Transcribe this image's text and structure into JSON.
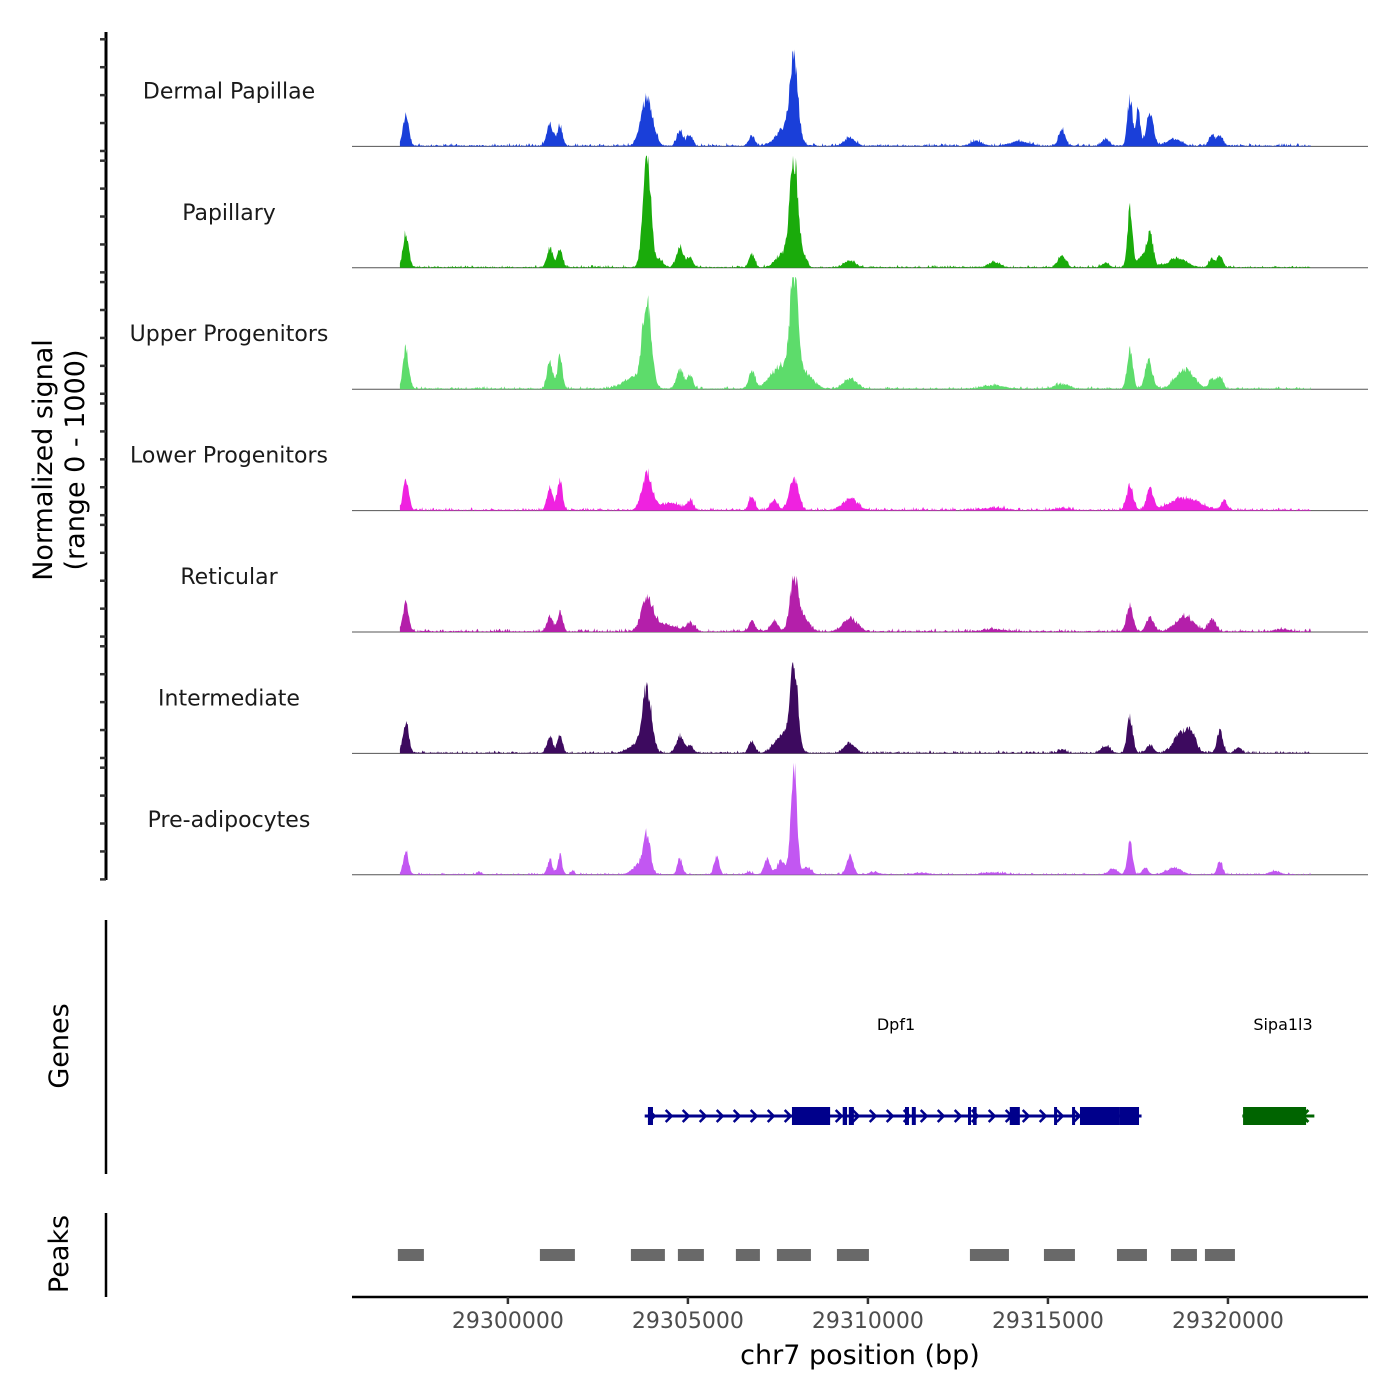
{
  "chart_data": {
    "type": "area",
    "title": "",
    "xlabel": "chr7 position (bp)",
    "ylabel": "Normalized signal\n(range 0 - 1000)",
    "ylabel_lines": [
      "Normalized signal",
      "(range 0 - 1000)"
    ],
    "xlim": [
      29295670,
      29323890
    ],
    "ylim": [
      0,
      1000
    ],
    "x_ticks": [
      29300000,
      29305000,
      29310000,
      29315000,
      29320000
    ],
    "x_tick_labels": [
      "29300000",
      "29305000",
      "29310000",
      "29315000",
      "29320000"
    ],
    "grid": false,
    "signal_extent": [
      29297000,
      29322300
    ],
    "series": [
      {
        "name": "Dermal Papillae",
        "color": "#1a3fd9",
        "peaks": [
          [
            29297167,
            270,
            80
          ],
          [
            29301167,
            180,
            90
          ],
          [
            29301444,
            180,
            70
          ],
          [
            29303861,
            440,
            160
          ],
          [
            29304778,
            130,
            90
          ],
          [
            29305056,
            90,
            80
          ],
          [
            29306778,
            90,
            80
          ],
          [
            29307944,
            710,
            110
          ],
          [
            29307700,
            150,
            250
          ],
          [
            29309500,
            70,
            150
          ],
          [
            29313000,
            40,
            150
          ],
          [
            29314200,
            40,
            250
          ],
          [
            29315389,
            140,
            90
          ],
          [
            29316600,
            60,
            100
          ],
          [
            29317278,
            420,
            70
          ],
          [
            29317500,
            330,
            60
          ],
          [
            29317833,
            270,
            100
          ],
          [
            29318500,
            60,
            200
          ],
          [
            29319556,
            90,
            80
          ],
          [
            29319778,
            90,
            80
          ]
        ],
        "noise": 12
      },
      {
        "name": "Papillary",
        "color": "#1aab0b",
        "peaks": [
          [
            29297167,
            300,
            80
          ],
          [
            29301167,
            180,
            80
          ],
          [
            29301444,
            170,
            70
          ],
          [
            29303861,
            990,
            110
          ],
          [
            29304222,
            60,
            100
          ],
          [
            29304778,
            170,
            100
          ],
          [
            29305056,
            90,
            80
          ],
          [
            29306778,
            120,
            80
          ],
          [
            29307944,
            940,
            110
          ],
          [
            29307650,
            120,
            200
          ],
          [
            29308200,
            90,
            100
          ],
          [
            29309500,
            60,
            150
          ],
          [
            29313500,
            50,
            150
          ],
          [
            29315389,
            110,
            110
          ],
          [
            29316600,
            40,
            100
          ],
          [
            29317278,
            520,
            70
          ],
          [
            29317833,
            300,
            90
          ],
          [
            29317600,
            100,
            100
          ],
          [
            29318600,
            80,
            250
          ],
          [
            29319556,
            80,
            80
          ],
          [
            29319778,
            100,
            80
          ]
        ],
        "noise": 10
      },
      {
        "name": "Upper Progenitors",
        "color": "#5ddc6b",
        "peaks": [
          [
            29297167,
            350,
            80
          ],
          [
            29301167,
            240,
            80
          ],
          [
            29301444,
            280,
            70
          ],
          [
            29303861,
            750,
            120
          ],
          [
            29303500,
            100,
            300
          ],
          [
            29304778,
            160,
            100
          ],
          [
            29305056,
            120,
            80
          ],
          [
            29306778,
            160,
            80
          ],
          [
            29307944,
            920,
            110
          ],
          [
            29307600,
            200,
            300
          ],
          [
            29308300,
            120,
            200
          ],
          [
            29309500,
            90,
            180
          ],
          [
            29313500,
            30,
            300
          ],
          [
            29315389,
            40,
            200
          ],
          [
            29317278,
            350,
            80
          ],
          [
            29317800,
            250,
            100
          ],
          [
            29318800,
            170,
            250
          ],
          [
            29319556,
            90,
            80
          ],
          [
            29319778,
            110,
            80
          ]
        ],
        "noise": 10
      },
      {
        "name": "Lower Progenitors",
        "color": "#ef22e0",
        "peaks": [
          [
            29297167,
            260,
            80
          ],
          [
            29301167,
            200,
            80
          ],
          [
            29301444,
            270,
            70
          ],
          [
            29303861,
            320,
            140
          ],
          [
            29304500,
            60,
            300
          ],
          [
            29305056,
            80,
            80
          ],
          [
            29306778,
            130,
            80
          ],
          [
            29307400,
            90,
            100
          ],
          [
            29307944,
            290,
            120
          ],
          [
            29309500,
            100,
            200
          ],
          [
            29313500,
            20,
            300
          ],
          [
            29315389,
            20,
            200
          ],
          [
            29317278,
            220,
            90
          ],
          [
            29317833,
            200,
            90
          ],
          [
            29318800,
            110,
            400
          ],
          [
            29319900,
            90,
            80
          ]
        ],
        "noise": 12
      },
      {
        "name": "Reticular",
        "color": "#b41faa",
        "peaks": [
          [
            29297167,
            240,
            80
          ],
          [
            29301167,
            140,
            80
          ],
          [
            29301444,
            180,
            70
          ],
          [
            29303861,
            290,
            150
          ],
          [
            29304300,
            70,
            300
          ],
          [
            29305056,
            70,
            120
          ],
          [
            29306778,
            100,
            80
          ],
          [
            29307400,
            100,
            100
          ],
          [
            29307944,
            470,
            110
          ],
          [
            29308200,
            130,
            150
          ],
          [
            29309500,
            120,
            200
          ],
          [
            29313500,
            20,
            300
          ],
          [
            29317278,
            230,
            90
          ],
          [
            29317833,
            130,
            100
          ],
          [
            29318800,
            130,
            250
          ],
          [
            29319556,
            110,
            100
          ],
          [
            29321500,
            20,
            200
          ]
        ],
        "noise": 12
      },
      {
        "name": "Intermediate",
        "color": "#3d0a5f",
        "peaks": [
          [
            29297167,
            280,
            80
          ],
          [
            29301167,
            140,
            80
          ],
          [
            29301444,
            160,
            70
          ],
          [
            29303861,
            560,
            130
          ],
          [
            29303500,
            60,
            200
          ],
          [
            29304778,
            150,
            100
          ],
          [
            29305056,
            70,
            80
          ],
          [
            29306778,
            110,
            80
          ],
          [
            29307944,
            770,
            110
          ],
          [
            29307600,
            160,
            200
          ],
          [
            29309500,
            90,
            150
          ],
          [
            29315389,
            30,
            100
          ],
          [
            29316600,
            60,
            120
          ],
          [
            29317278,
            310,
            80
          ],
          [
            29317833,
            70,
            100
          ],
          [
            29318700,
            180,
            200
          ],
          [
            29319000,
            140,
            120
          ],
          [
            29319778,
            200,
            80
          ],
          [
            29320300,
            50,
            80
          ]
        ],
        "noise": 10
      },
      {
        "name": "Pre-adipocytes",
        "color": "#c257f2",
        "peaks": [
          [
            29297167,
            210,
            70
          ],
          [
            29299200,
            25,
            60
          ],
          [
            29301167,
            130,
            70
          ],
          [
            29301444,
            170,
            60
          ],
          [
            29301800,
            40,
            50
          ],
          [
            29303700,
            100,
            200
          ],
          [
            29303861,
            300,
            90
          ],
          [
            29304778,
            140,
            70
          ],
          [
            29305800,
            160,
            70
          ],
          [
            29306700,
            20,
            100
          ],
          [
            29307200,
            140,
            80
          ],
          [
            29307944,
            1000,
            80
          ],
          [
            29307600,
            120,
            120
          ],
          [
            29308300,
            60,
            120
          ],
          [
            29309500,
            170,
            90
          ],
          [
            29310200,
            20,
            150
          ],
          [
            29311500,
            15,
            200
          ],
          [
            29313500,
            15,
            300
          ],
          [
            29316800,
            50,
            120
          ],
          [
            29317278,
            300,
            70
          ],
          [
            29317700,
            60,
            80
          ],
          [
            29318500,
            60,
            200
          ],
          [
            29319778,
            120,
            70
          ],
          [
            29321300,
            30,
            150
          ]
        ],
        "noise": 8
      }
    ],
    "tracks_genes": {
      "label": "Genes",
      "genes": [
        {
          "name": "Dpf1",
          "strand": "+",
          "color": "#00008b",
          "start": 29303800,
          "end": 29317600,
          "exons": [
            [
              29303890,
              29304030
            ],
            [
              29307890,
              29308950
            ],
            [
              29309300,
              29309420
            ],
            [
              29309470,
              29309610
            ],
            [
              29311030,
              29311140
            ],
            [
              29311220,
              29311330
            ],
            [
              29312780,
              29312860
            ],
            [
              29312920,
              29313020
            ],
            [
              29313940,
              29314220
            ],
            [
              29315170,
              29315250
            ],
            [
              29315670,
              29315750
            ],
            [
              29315890,
              29317000
            ],
            [
              29317000,
              29317530
            ]
          ]
        },
        {
          "name": "Sipa1l3",
          "strand": "-",
          "color": "#006400",
          "start": 29320400,
          "end": 29322400,
          "exons": [
            [
              29320420,
              29322170
            ]
          ]
        }
      ]
    },
    "tracks_peaks": {
      "label": "Peaks",
      "color": "#696969",
      "regions": [
        [
          29296944,
          29297667
        ],
        [
          29300889,
          29301861
        ],
        [
          29303417,
          29304361
        ],
        [
          29304722,
          29305444
        ],
        [
          29306333,
          29307000
        ],
        [
          29307472,
          29308417
        ],
        [
          29309139,
          29310028
        ],
        [
          29312833,
          29313917
        ],
        [
          29314889,
          29315750
        ],
        [
          29316917,
          29317750
        ],
        [
          29318417,
          29319139
        ],
        [
          29319361,
          29320194
        ]
      ]
    }
  }
}
